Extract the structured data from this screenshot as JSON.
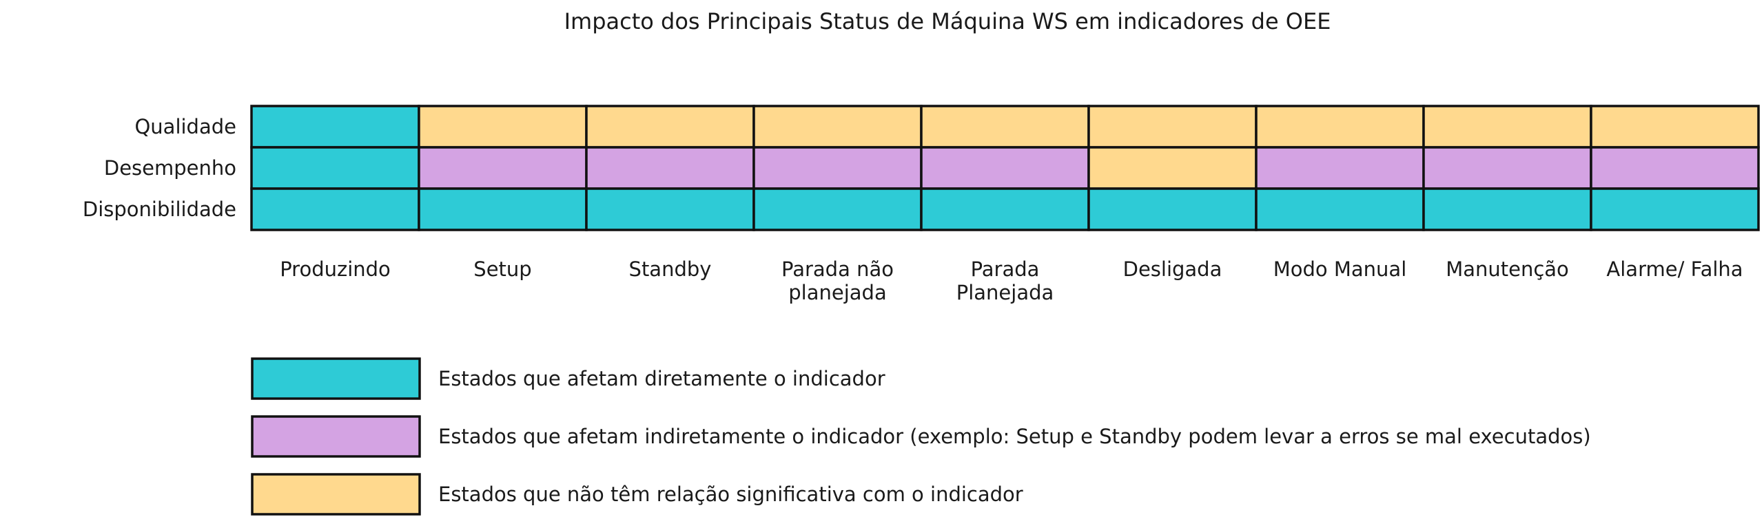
{
  "chart_data": {
    "type": "heatmap",
    "title": "Impacto dos Principais Status de Máquina WS em indicadores de OEE",
    "rows": [
      "Qualidade",
      "Desempenho",
      "Disponibilidade"
    ],
    "columns": [
      [
        "Produzindo"
      ],
      [
        "Setup"
      ],
      [
        "Standby"
      ],
      [
        "Parada não",
        "planejada"
      ],
      [
        "Parada",
        "Planejada"
      ],
      [
        "Desligada"
      ],
      [
        "Modo Manual"
      ],
      [
        "Manutenção"
      ],
      [
        "Alarme/ Falha"
      ]
    ],
    "cells": [
      [
        "direto",
        "sem_relacao",
        "sem_relacao",
        "sem_relacao",
        "sem_relacao",
        "sem_relacao",
        "sem_relacao",
        "sem_relacao",
        "sem_relacao"
      ],
      [
        "direto",
        "indireto",
        "indireto",
        "indireto",
        "indireto",
        "sem_relacao",
        "indireto",
        "indireto",
        "indireto"
      ],
      [
        "direto",
        "direto",
        "direto",
        "direto",
        "direto",
        "direto",
        "direto",
        "direto",
        "direto"
      ]
    ],
    "legend": [
      {
        "key": "direto",
        "color": "#2ecbd6",
        "label": "Estados que afetam diretamente o indicador"
      },
      {
        "key": "indireto",
        "color": "#d4a3e3",
        "label": "Estados que afetam indiretamente o indicador (exemplo: Setup e Standby podem levar a erros se mal executados)"
      },
      {
        "key": "sem_relacao",
        "color": "#ffd98e",
        "label": "Estados que não têm relação significativa com o indicador"
      }
    ],
    "legend_placement": "bottom",
    "border_color": "#111111"
  }
}
